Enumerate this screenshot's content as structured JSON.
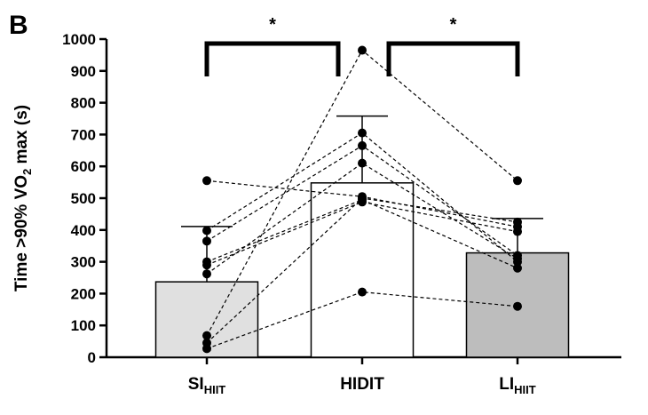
{
  "chart_data": {
    "type": "bar",
    "panel_label": "B",
    "y_label": {
      "before": "Time >90% VO",
      "sub": "2",
      "after": " max (s)"
    },
    "categories": [
      {
        "main": "SI",
        "sub": "HIIT"
      },
      {
        "main": "HIDIT"
      },
      {
        "main": "LI",
        "sub": "HIIT"
      }
    ],
    "values": [
      237,
      548,
      328
    ],
    "errors": [
      174,
      210,
      108
    ],
    "colors": [
      "#e0e0e0",
      "#ffffff",
      "#bdbdbd"
    ],
    "subjects": [
      [
        555,
        505,
        410
      ],
      [
        398,
        705,
        300
      ],
      [
        365,
        665,
        320
      ],
      [
        300,
        495,
        280
      ],
      [
        290,
        488,
        395
      ],
      [
        262,
        610,
        310
      ],
      [
        68,
        965,
        555
      ],
      [
        45,
        500,
        425
      ],
      [
        27,
        205,
        160
      ]
    ],
    "annotations": [
      "*",
      "*"
    ],
    "ylim": [
      0,
      1000
    ],
    "yticks": [
      0,
      100,
      200,
      300,
      400,
      500,
      600,
      700,
      800,
      900,
      1000
    ]
  }
}
